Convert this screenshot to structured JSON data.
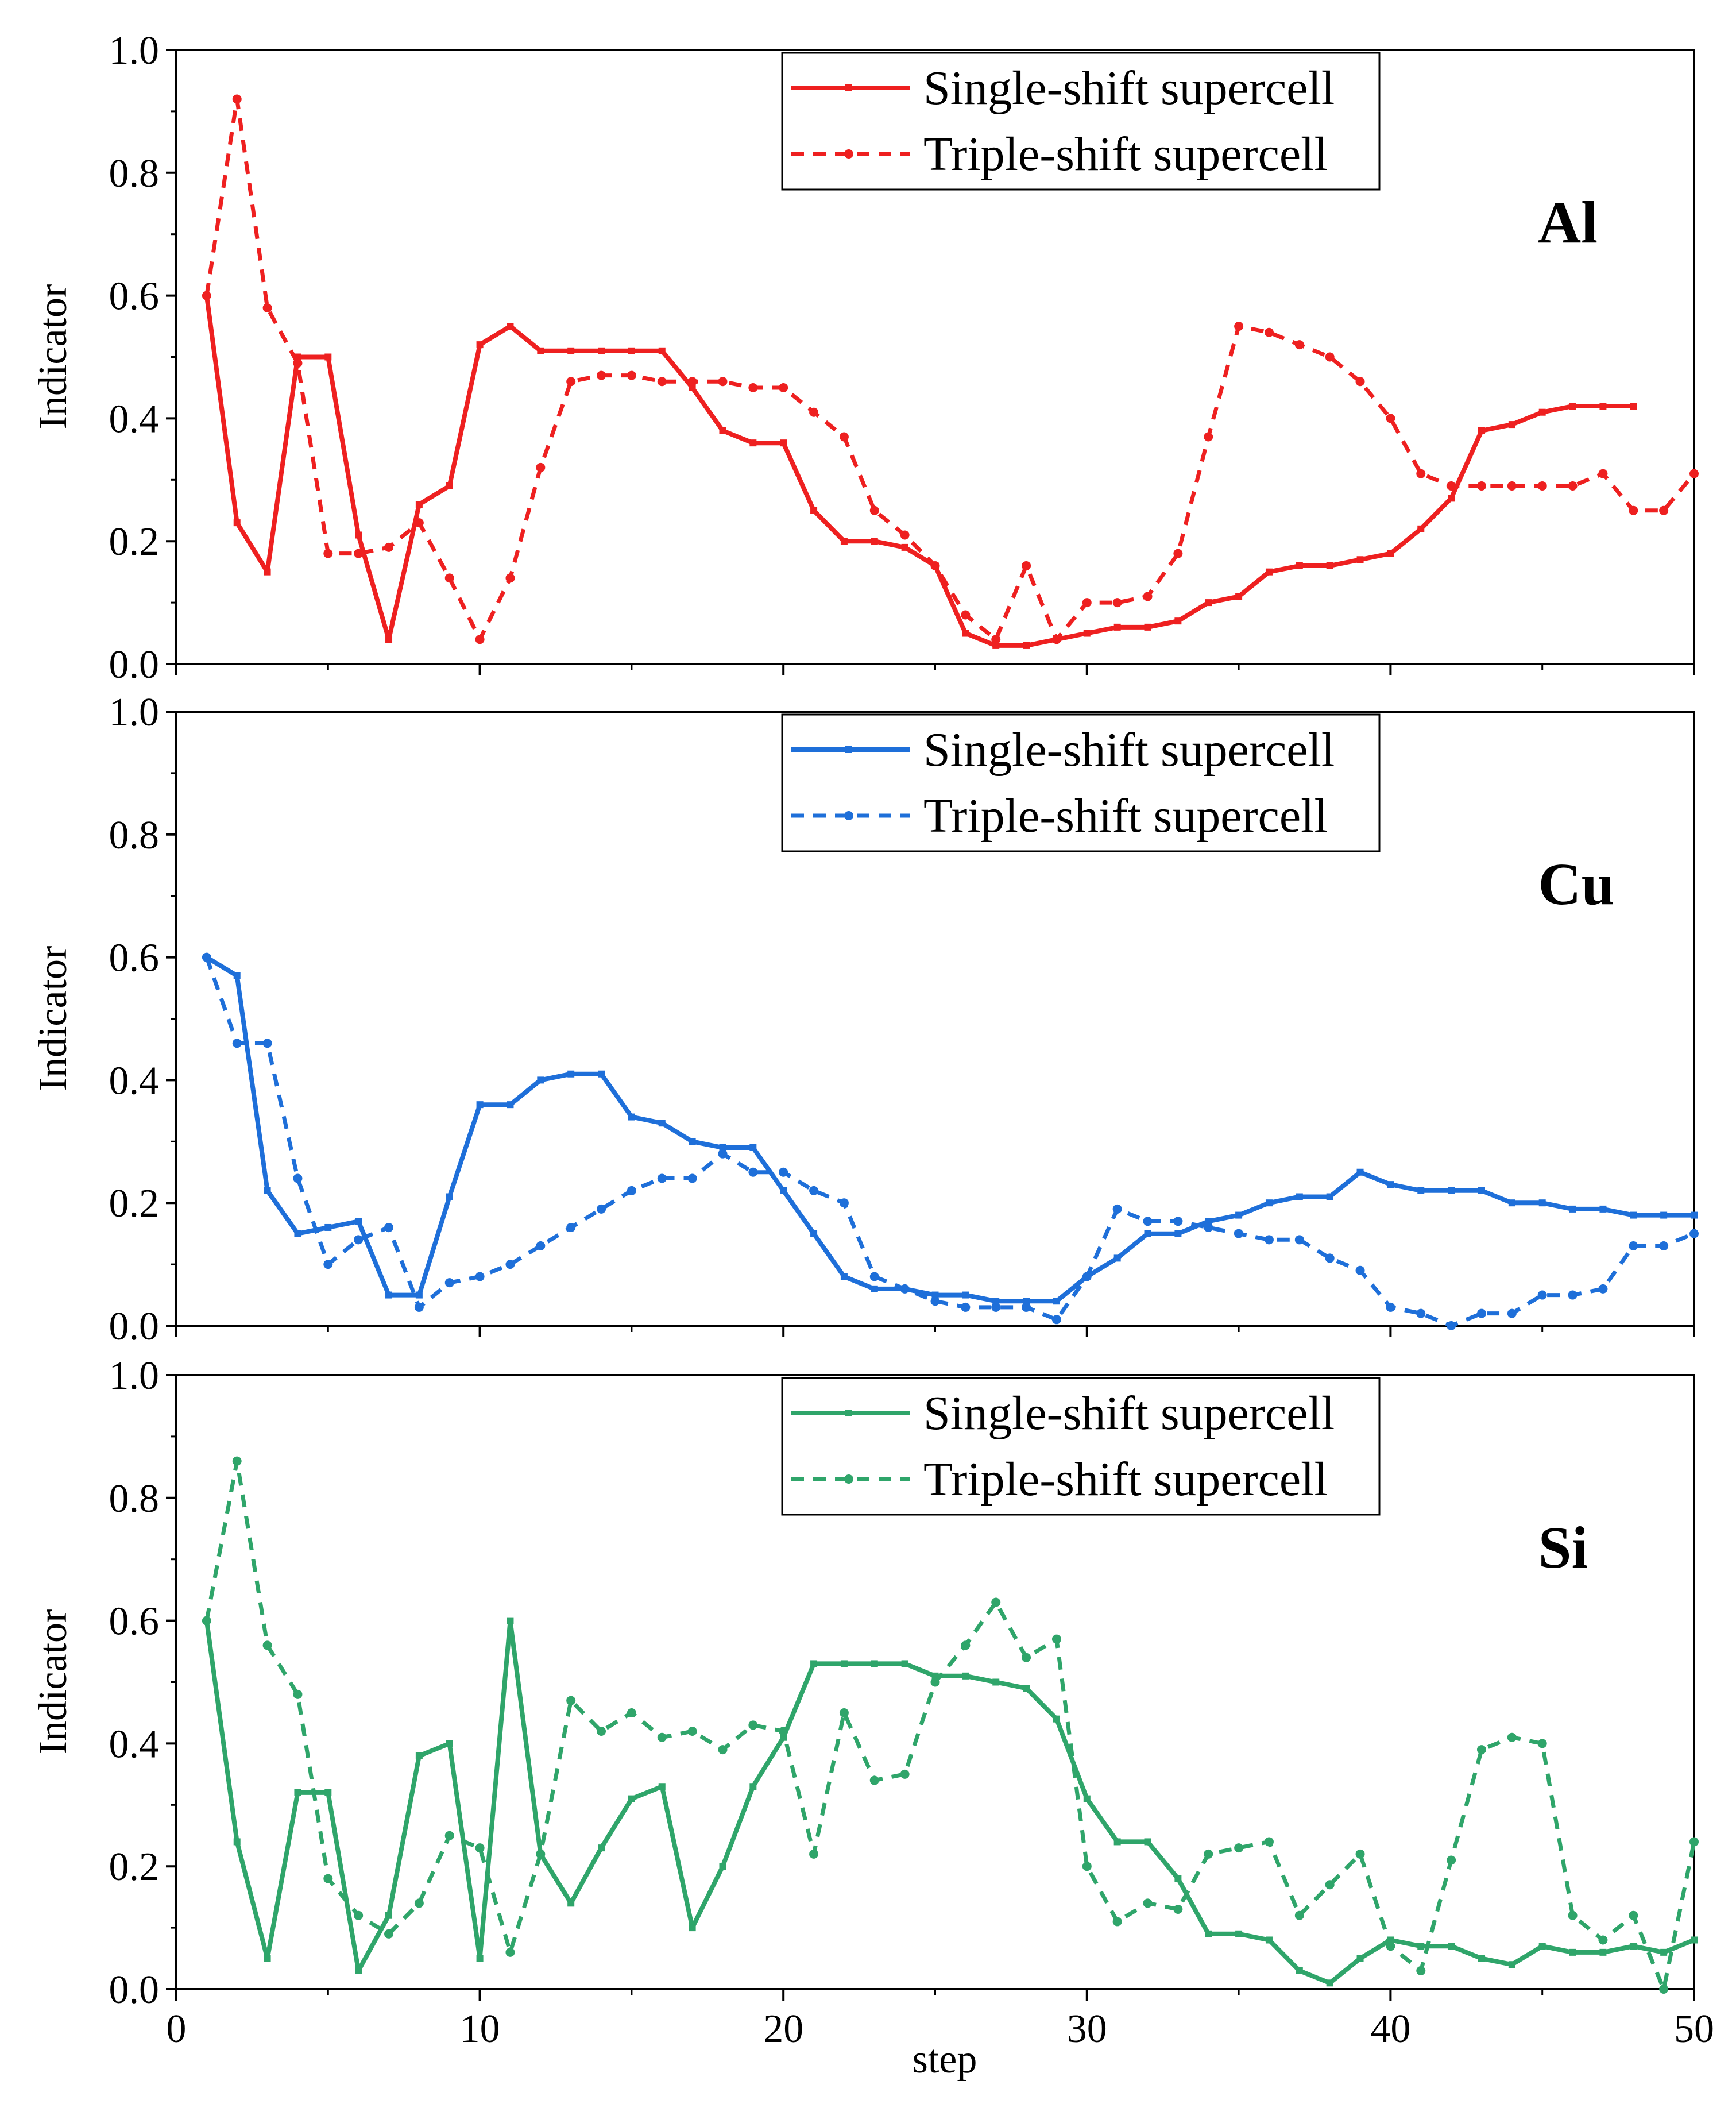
{
  "figure": {
    "xlabel": "step",
    "colors": {
      "Al": "#ee2020",
      "Cu": "#1e6fd9",
      "Si": "#2fa56a",
      "axis": "#000000"
    }
  },
  "chart_data": [
    {
      "type": "line",
      "panel": "Al",
      "element_label": "Al",
      "ylabel": "Indicator",
      "xlabel": "step",
      "xlim": [
        0,
        50
      ],
      "ylim": [
        0.0,
        1.0
      ],
      "x_ticks": [
        0,
        10,
        20,
        30,
        40,
        50
      ],
      "y_ticks": [
        "0.0",
        "0.2",
        "0.4",
        "0.6",
        "0.8",
        "1.0"
      ],
      "legend": [
        "Single-shift supercell",
        "Triple-shift supercell"
      ],
      "legend_position": "top-right",
      "series": [
        {
          "name": "Single-shift supercell",
          "style": "solid",
          "x": [
            1,
            2,
            3,
            4,
            5,
            6,
            7,
            8,
            9,
            10,
            11,
            12,
            13,
            14,
            15,
            16,
            17,
            18,
            19,
            20,
            21,
            22,
            23,
            24,
            25,
            26,
            27,
            28,
            29,
            30,
            31,
            32,
            33,
            34,
            35,
            36,
            37,
            38,
            39,
            40,
            41,
            42,
            43,
            44,
            45,
            46,
            47,
            48
          ],
          "values": [
            0.6,
            0.23,
            0.15,
            0.5,
            0.5,
            0.21,
            0.04,
            0.26,
            0.29,
            0.52,
            0.55,
            0.51,
            0.51,
            0.51,
            0.51,
            0.51,
            0.45,
            0.38,
            0.36,
            0.36,
            0.25,
            0.2,
            0.2,
            0.19,
            0.16,
            0.05,
            0.03,
            0.03,
            0.04,
            0.05,
            0.06,
            0.06,
            0.07,
            0.1,
            0.11,
            0.15,
            0.16,
            0.16,
            0.17,
            0.18,
            0.22,
            0.27,
            0.38,
            0.39,
            0.41,
            0.42,
            0.42,
            0.42
          ]
        },
        {
          "name": "Triple-shift supercell",
          "style": "dashed",
          "x": [
            1,
            2,
            3,
            4,
            5,
            6,
            7,
            8,
            9,
            10,
            11,
            12,
            13,
            14,
            15,
            16,
            17,
            18,
            19,
            20,
            21,
            22,
            23,
            24,
            25,
            26,
            27,
            28,
            29,
            30,
            31,
            32,
            33,
            34,
            35,
            36,
            37,
            38,
            39,
            40,
            41,
            42,
            43,
            44,
            45,
            46,
            47,
            48,
            49,
            50
          ],
          "values": [
            0.6,
            0.92,
            0.58,
            0.49,
            0.18,
            0.18,
            0.19,
            0.23,
            0.14,
            0.04,
            0.14,
            0.32,
            0.46,
            0.47,
            0.47,
            0.46,
            0.46,
            0.46,
            0.45,
            0.45,
            0.41,
            0.37,
            0.25,
            0.21,
            0.16,
            0.08,
            0.04,
            0.16,
            0.04,
            0.1,
            0.1,
            0.11,
            0.18,
            0.37,
            0.55,
            0.54,
            0.52,
            0.5,
            0.46,
            0.4,
            0.31,
            0.29,
            0.29,
            0.29,
            0.29,
            0.29,
            0.31,
            0.25,
            0.25,
            0.31
          ]
        }
      ]
    },
    {
      "type": "line",
      "panel": "Cu",
      "element_label": "Cu",
      "ylabel": "Indicator",
      "xlabel": "step",
      "xlim": [
        0,
        50
      ],
      "ylim": [
        0.0,
        1.0
      ],
      "x_ticks": [
        0,
        10,
        20,
        30,
        40,
        50
      ],
      "y_ticks": [
        "0.0",
        "0.2",
        "0.4",
        "0.6",
        "0.8",
        "1.0"
      ],
      "legend": [
        "Single-shift supercell",
        "Triple-shift supercell"
      ],
      "legend_position": "top-right",
      "series": [
        {
          "name": "Single-shift supercell",
          "style": "solid",
          "x": [
            1,
            2,
            3,
            4,
            5,
            6,
            7,
            8,
            9,
            10,
            11,
            12,
            13,
            14,
            15,
            16,
            17,
            18,
            19,
            20,
            21,
            22,
            23,
            24,
            25,
            26,
            27,
            28,
            29,
            30,
            31,
            32,
            33,
            34,
            35,
            36,
            37,
            38,
            39,
            40,
            41,
            42,
            43,
            44,
            45,
            46,
            47,
            48,
            49,
            50
          ],
          "values": [
            0.6,
            0.57,
            0.22,
            0.15,
            0.16,
            0.17,
            0.05,
            0.05,
            0.21,
            0.36,
            0.36,
            0.4,
            0.41,
            0.41,
            0.34,
            0.33,
            0.3,
            0.29,
            0.29,
            0.22,
            0.15,
            0.08,
            0.06,
            0.06,
            0.05,
            0.05,
            0.04,
            0.04,
            0.04,
            0.08,
            0.11,
            0.15,
            0.15,
            0.17,
            0.18,
            0.2,
            0.21,
            0.21,
            0.25,
            0.23,
            0.22,
            0.22,
            0.22,
            0.2,
            0.2,
            0.19,
            0.19,
            0.18,
            0.18,
            0.18
          ]
        },
        {
          "name": "Triple-shift supercell",
          "style": "dashed",
          "x": [
            1,
            2,
            3,
            4,
            5,
            6,
            7,
            8,
            9,
            10,
            11,
            12,
            13,
            14,
            15,
            16,
            17,
            18,
            19,
            20,
            21,
            22,
            23,
            24,
            25,
            26,
            27,
            28,
            29,
            30,
            31,
            32,
            33,
            34,
            35,
            36,
            37,
            38,
            39,
            40,
            41,
            42,
            43,
            44,
            45,
            46,
            47,
            48,
            49,
            50
          ],
          "values": [
            0.6,
            0.46,
            0.46,
            0.24,
            0.1,
            0.14,
            0.16,
            0.03,
            0.07,
            0.08,
            0.1,
            0.13,
            0.16,
            0.19,
            0.22,
            0.24,
            0.24,
            0.28,
            0.25,
            0.25,
            0.22,
            0.2,
            0.08,
            0.06,
            0.04,
            0.03,
            0.03,
            0.03,
            0.01,
            0.08,
            0.19,
            0.17,
            0.17,
            0.16,
            0.15,
            0.14,
            0.14,
            0.11,
            0.09,
            0.03,
            0.02,
            0.0,
            0.02,
            0.02,
            0.05,
            0.05,
            0.06,
            0.13,
            0.13,
            0.15
          ]
        }
      ]
    },
    {
      "type": "line",
      "panel": "Si",
      "element_label": "Si",
      "ylabel": "Indicator",
      "xlabel": "step",
      "xlim": [
        0,
        50
      ],
      "ylim": [
        0.0,
        1.0
      ],
      "x_ticks": [
        0,
        10,
        20,
        30,
        40,
        50
      ],
      "y_ticks": [
        "0.0",
        "0.2",
        "0.4",
        "0.6",
        "0.8",
        "1.0"
      ],
      "legend": [
        "Single-shift supercell",
        "Triple-shift supercell"
      ],
      "legend_position": "top-right",
      "series": [
        {
          "name": "Single-shift supercell",
          "style": "solid",
          "x": [
            1,
            2,
            3,
            4,
            5,
            6,
            7,
            8,
            9,
            10,
            11,
            12,
            13,
            14,
            15,
            16,
            17,
            18,
            19,
            20,
            21,
            22,
            23,
            24,
            25,
            26,
            27,
            28,
            29,
            30,
            31,
            32,
            33,
            34,
            35,
            36,
            37,
            38,
            39,
            40,
            41,
            42,
            43,
            44,
            45,
            46,
            47,
            48,
            49,
            50
          ],
          "values": [
            0.6,
            0.24,
            0.05,
            0.32,
            0.32,
            0.03,
            0.12,
            0.38,
            0.4,
            0.05,
            0.6,
            0.22,
            0.14,
            0.23,
            0.31,
            0.33,
            0.1,
            0.2,
            0.33,
            0.41,
            0.53,
            0.53,
            0.53,
            0.53,
            0.51,
            0.51,
            0.5,
            0.49,
            0.44,
            0.31,
            0.24,
            0.24,
            0.18,
            0.09,
            0.09,
            0.08,
            0.03,
            0.01,
            0.05,
            0.08,
            0.07,
            0.07,
            0.05,
            0.04,
            0.07,
            0.06,
            0.06,
            0.07,
            0.06,
            0.08
          ]
        },
        {
          "name": "Triple-shift supercell",
          "style": "dashed",
          "x": [
            1,
            2,
            3,
            4,
            5,
            6,
            7,
            8,
            9,
            10,
            11,
            12,
            13,
            14,
            15,
            16,
            17,
            18,
            19,
            20,
            21,
            22,
            23,
            24,
            25,
            26,
            27,
            28,
            29,
            30,
            31,
            32,
            33,
            34,
            35,
            36,
            37,
            38,
            39,
            40,
            41,
            42,
            43,
            44,
            45,
            46,
            47,
            48,
            49,
            50
          ],
          "values": [
            0.6,
            0.86,
            0.56,
            0.48,
            0.18,
            0.12,
            0.09,
            0.14,
            0.25,
            0.23,
            0.06,
            0.22,
            0.47,
            0.42,
            0.45,
            0.41,
            0.42,
            0.39,
            0.43,
            0.42,
            0.22,
            0.45,
            0.34,
            0.35,
            0.5,
            0.56,
            0.63,
            0.54,
            0.57,
            0.2,
            0.11,
            0.14,
            0.13,
            0.22,
            0.23,
            0.24,
            0.12,
            0.17,
            0.22,
            0.07,
            0.03,
            0.21,
            0.39,
            0.41,
            0.4,
            0.12,
            0.08,
            0.12,
            0.0,
            0.24
          ]
        }
      ]
    }
  ]
}
